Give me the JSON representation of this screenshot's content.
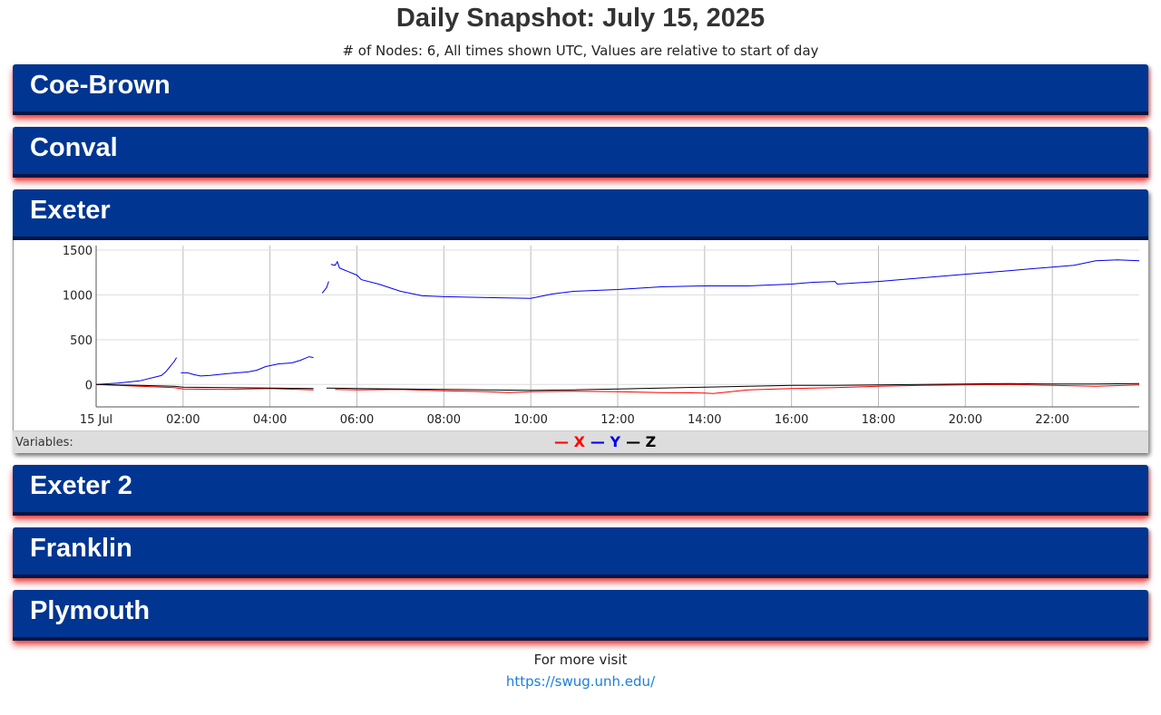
{
  "header": {
    "title": "Daily Snapshot: July 15, 2025",
    "subtitle": "# of Nodes: 6, All times shown UTC, Values are relative to start of day"
  },
  "panels": [
    {
      "name": "Coe-Brown",
      "expanded": false
    },
    {
      "name": "Conval",
      "expanded": false
    },
    {
      "name": "Exeter",
      "expanded": true
    },
    {
      "name": "Exeter 2",
      "expanded": false
    },
    {
      "name": "Franklin",
      "expanded": false
    },
    {
      "name": "Plymouth",
      "expanded": false
    }
  ],
  "legend": {
    "label": "Variables:",
    "items": [
      {
        "name": "X",
        "color": "#ff0000"
      },
      {
        "name": "Y",
        "color": "#0000ee"
      },
      {
        "name": "Z",
        "color": "#000000"
      }
    ]
  },
  "chart_data": {
    "type": "line",
    "title": "",
    "xlabel": "",
    "ylabel": "",
    "x_ticks": [
      "15 Jul",
      "02:00",
      "04:00",
      "06:00",
      "08:00",
      "10:00",
      "12:00",
      "14:00",
      "16:00",
      "18:00",
      "20:00",
      "22:00"
    ],
    "y_ticks": [
      1500,
      1000,
      500,
      0
    ],
    "xlim_hours": [
      0,
      24
    ],
    "ylim": [
      -250,
      1550
    ],
    "grid": true,
    "legend_position": "bottom-center",
    "series": [
      {
        "name": "Y",
        "color": "#0000ee",
        "segments": [
          [
            [
              0,
              0
            ],
            [
              0.5,
              15
            ],
            [
              1,
              40
            ],
            [
              1.5,
              100
            ],
            [
              1.6,
              140
            ],
            [
              1.7,
              200
            ],
            [
              1.75,
              230
            ],
            [
              1.8,
              260
            ],
            [
              1.85,
              300
            ]
          ],
          [
            [
              1.95,
              130
            ],
            [
              2.1,
              130
            ],
            [
              2.25,
              110
            ],
            [
              2.4,
              95
            ],
            [
              2.6,
              100
            ],
            [
              3,
              120
            ],
            [
              3.5,
              140
            ],
            [
              3.7,
              160
            ],
            [
              3.9,
              200
            ],
            [
              4.2,
              230
            ],
            [
              4.5,
              240
            ],
            [
              4.7,
              270
            ],
            [
              4.8,
              290
            ],
            [
              4.9,
              310
            ],
            [
              5,
              300
            ]
          ],
          [
            [
              5.2,
              1020
            ],
            [
              5.3,
              1080
            ],
            [
              5.35,
              1150
            ]
          ],
          [
            [
              5.4,
              1340
            ],
            [
              5.5,
              1330
            ],
            [
              5.55,
              1370
            ],
            [
              5.6,
              1300
            ],
            [
              5.8,
              1260
            ],
            [
              6,
              1220
            ],
            [
              6.1,
              1170
            ],
            [
              6.5,
              1120
            ],
            [
              7,
              1040
            ],
            [
              7.5,
              990
            ],
            [
              8,
              980
            ],
            [
              9,
              970
            ],
            [
              10,
              960
            ],
            [
              10.5,
              1010
            ],
            [
              11,
              1040
            ],
            [
              12,
              1060
            ],
            [
              13,
              1090
            ],
            [
              14,
              1100
            ],
            [
              15,
              1100
            ],
            [
              16,
              1120
            ],
            [
              16.5,
              1140
            ],
            [
              17,
              1150
            ],
            [
              17.05,
              1120
            ],
            [
              18,
              1150
            ],
            [
              19,
              1190
            ],
            [
              20,
              1230
            ],
            [
              21,
              1270
            ],
            [
              22,
              1310
            ],
            [
              22.5,
              1330
            ],
            [
              23,
              1380
            ],
            [
              23.5,
              1390
            ],
            [
              24,
              1380
            ]
          ]
        ]
      },
      {
        "name": "X",
        "color": "#ff0000",
        "segments": [
          [
            [
              0,
              0
            ],
            [
              1,
              -20
            ],
            [
              1.8,
              -35
            ],
            [
              2,
              -50
            ],
            [
              3,
              -55
            ],
            [
              4,
              -45
            ],
            [
              5,
              -60
            ]
          ],
          [
            [
              5.5,
              -55
            ],
            [
              6,
              -60
            ],
            [
              7,
              -55
            ],
            [
              8,
              -70
            ],
            [
              9,
              -80
            ],
            [
              9.5,
              -90
            ],
            [
              10,
              -80
            ],
            [
              11,
              -75
            ],
            [
              12,
              -80
            ],
            [
              13,
              -90
            ],
            [
              14,
              -95
            ],
            [
              14.2,
              -100
            ],
            [
              15,
              -60
            ],
            [
              16,
              -45
            ],
            [
              17,
              -35
            ],
            [
              18,
              -20
            ],
            [
              19,
              -10
            ],
            [
              20,
              -5
            ],
            [
              21,
              0
            ],
            [
              22,
              -10
            ],
            [
              23,
              -20
            ],
            [
              24,
              -5
            ]
          ]
        ]
      },
      {
        "name": "Z",
        "color": "#000000",
        "segments": [
          [
            [
              0,
              0
            ],
            [
              1,
              -10
            ],
            [
              1.8,
              -20
            ],
            [
              2,
              -30
            ],
            [
              3,
              -35
            ],
            [
              4,
              -40
            ],
            [
              5,
              -45
            ]
          ],
          [
            [
              5.3,
              -40
            ],
            [
              6,
              -45
            ],
            [
              7,
              -50
            ],
            [
              8,
              -55
            ],
            [
              9,
              -60
            ],
            [
              10,
              -65
            ],
            [
              11,
              -60
            ],
            [
              12,
              -50
            ],
            [
              13,
              -40
            ],
            [
              14,
              -30
            ],
            [
              15,
              -20
            ],
            [
              16,
              -10
            ],
            [
              17,
              -10
            ],
            [
              18,
              -5
            ],
            [
              19,
              0
            ],
            [
              20,
              5
            ],
            [
              21,
              10
            ],
            [
              22,
              5
            ],
            [
              23,
              5
            ],
            [
              24,
              10
            ]
          ]
        ]
      }
    ]
  },
  "footer": {
    "text": "For more visit",
    "link": "https://swug.unh.edu/"
  }
}
